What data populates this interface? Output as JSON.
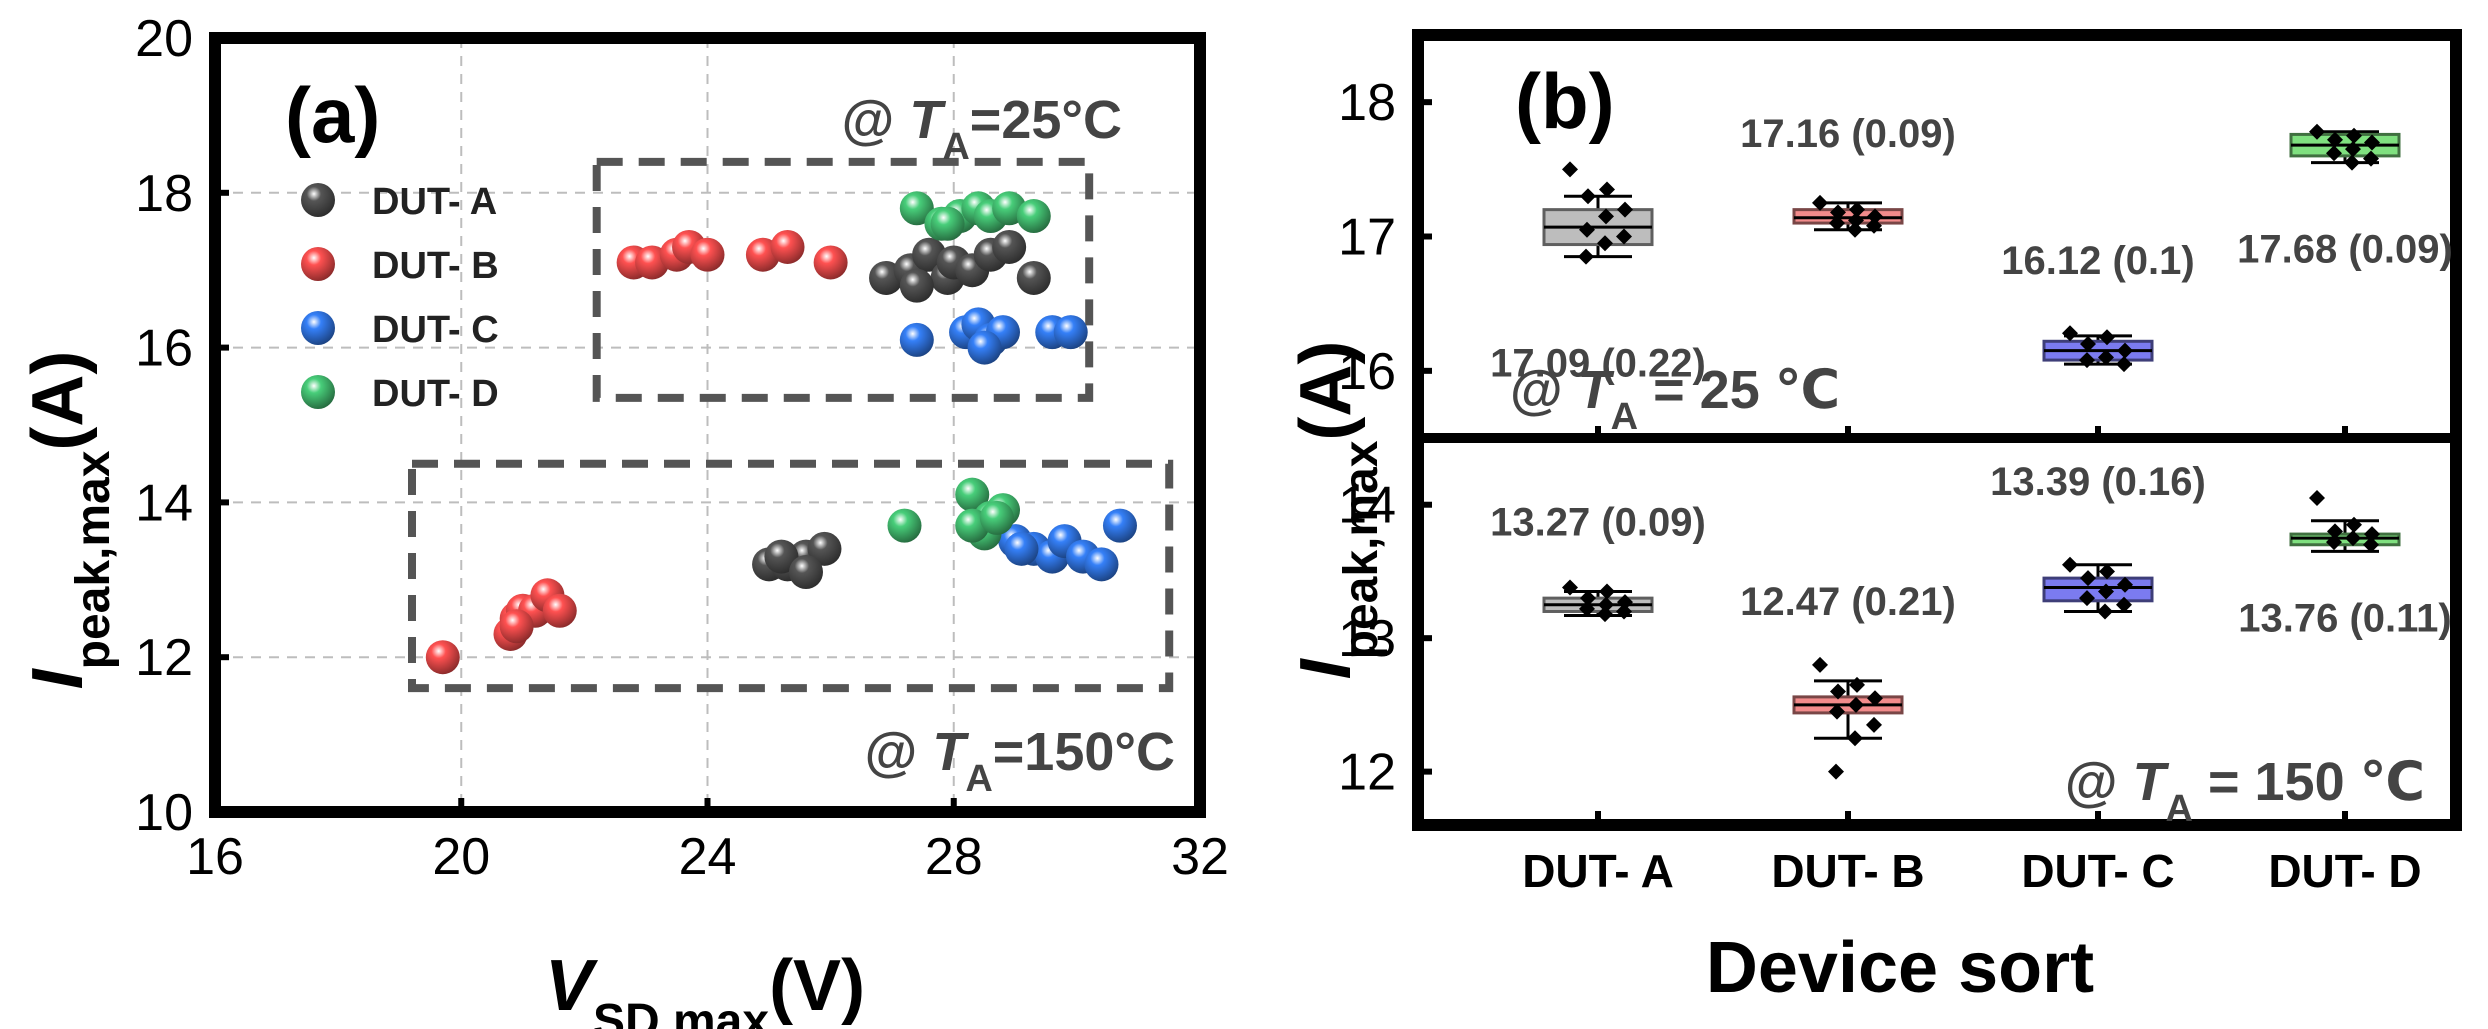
{
  "chart_data": [
    {
      "type": "scatter",
      "panel_label": "(a)",
      "xlabel": {
        "base": "V",
        "sub": "SD,max",
        "tail": "(V)"
      },
      "ylabel": {
        "base": "I",
        "sub": "peak,max",
        "tail": "(A)"
      },
      "xlim": [
        16,
        32
      ],
      "ylim": [
        10,
        20
      ],
      "xticks": [
        16,
        20,
        24,
        28,
        32
      ],
      "yticks": [
        10,
        12,
        14,
        16,
        18,
        20
      ],
      "grid": true,
      "legend_position": "top-left",
      "annotations": [
        {
          "text": "@ ",
          "italic": "T",
          "sub": "A",
          "rest": "=25°C"
        },
        {
          "text": "@ ",
          "italic": "T",
          "sub": "A",
          "rest": "=150°C"
        }
      ],
      "series": [
        {
          "name": "DUT- A",
          "color": "#4a4a4a",
          "points": [
            [
              26.9,
              16.9
            ],
            [
              27.3,
              17.0
            ],
            [
              27.6,
              17.2
            ],
            [
              27.9,
              16.9
            ],
            [
              28.0,
              17.1
            ],
            [
              28.3,
              17.0
            ],
            [
              28.6,
              17.2
            ],
            [
              28.9,
              17.3
            ],
            [
              29.3,
              16.9
            ],
            [
              27.4,
              16.8
            ],
            [
              25.0,
              13.2
            ],
            [
              25.3,
              13.2
            ],
            [
              25.6,
              13.3
            ],
            [
              25.9,
              13.4
            ],
            [
              25.2,
              13.3
            ],
            [
              25.6,
              13.1
            ]
          ]
        },
        {
          "name": "DUT- B",
          "color": "#e84646",
          "points": [
            [
              22.8,
              17.1
            ],
            [
              23.1,
              17.1
            ],
            [
              23.5,
              17.2
            ],
            [
              23.7,
              17.3
            ],
            [
              24.0,
              17.2
            ],
            [
              24.9,
              17.2
            ],
            [
              25.3,
              17.3
            ],
            [
              26.0,
              17.1
            ],
            [
              19.7,
              12.0
            ],
            [
              20.8,
              12.3
            ],
            [
              20.9,
              12.5
            ],
            [
              21.0,
              12.6
            ],
            [
              21.2,
              12.6
            ],
            [
              21.4,
              12.8
            ],
            [
              21.6,
              12.6
            ],
            [
              20.9,
              12.4
            ]
          ]
        },
        {
          "name": "DUT- C",
          "color": "#2e6fd8",
          "points": [
            [
              27.4,
              16.1
            ],
            [
              28.2,
              16.2
            ],
            [
              28.4,
              16.3
            ],
            [
              28.6,
              16.1
            ],
            [
              28.8,
              16.2
            ],
            [
              29.6,
              16.2
            ],
            [
              29.9,
              16.2
            ],
            [
              28.5,
              16.0
            ],
            [
              29.0,
              13.5
            ],
            [
              29.3,
              13.4
            ],
            [
              29.6,
              13.3
            ],
            [
              29.8,
              13.5
            ],
            [
              30.1,
              13.3
            ],
            [
              30.4,
              13.2
            ],
            [
              30.7,
              13.7
            ],
            [
              29.1,
              13.4
            ]
          ]
        },
        {
          "name": "DUT- D",
          "color": "#3fb36a",
          "points": [
            [
              27.4,
              17.8
            ],
            [
              27.8,
              17.6
            ],
            [
              28.1,
              17.7
            ],
            [
              28.4,
              17.8
            ],
            [
              28.6,
              17.7
            ],
            [
              28.9,
              17.8
            ],
            [
              29.3,
              17.7
            ],
            [
              27.9,
              17.6
            ],
            [
              27.2,
              13.7
            ],
            [
              28.3,
              14.1
            ],
            [
              28.4,
              13.7
            ],
            [
              28.6,
              13.8
            ],
            [
              28.8,
              13.9
            ],
            [
              28.5,
              13.6
            ],
            [
              28.3,
              13.7
            ],
            [
              28.7,
              13.8
            ]
          ]
        }
      ]
    },
    {
      "type": "box",
      "panel_label": "(b)",
      "xlabel": "Device sort",
      "ylabel": {
        "base": "I",
        "sub": "peak,max",
        "tail": "(A)"
      },
      "categories": [
        "DUT- A",
        "DUT- B",
        "DUT- C",
        "DUT- D"
      ],
      "colors": [
        "#bdbdbd",
        "#f28b8b",
        "#7b7bf0",
        "#7fe07f"
      ],
      "subpanels": [
        {
          "condition": {
            "text": "@ ",
            "italic": "T",
            "sub": "A",
            "rest": " = 25 ℃"
          },
          "ylim": [
            15.5,
            18.5
          ],
          "yticks": [
            16,
            17,
            18
          ],
          "boxes": [
            {
              "category": "DUT- A",
              "mean": 17.07,
              "q1": 16.94,
              "q3": 17.2,
              "whisker_low": 16.85,
              "whisker_high": 17.3,
              "label": "17.09 (0.22)",
              "points": [
                17.5,
                17.35,
                17.3,
                17.2,
                17.15,
                17.05,
                17.0,
                16.95,
                16.85
              ]
            },
            {
              "category": "DUT- B",
              "mean": 17.14,
              "q1": 17.1,
              "q3": 17.2,
              "whisker_low": 17.05,
              "whisker_high": 17.25,
              "label": "17.16 (0.09)",
              "points": [
                17.25,
                17.2,
                17.18,
                17.15,
                17.12,
                17.1,
                17.08,
                17.05
              ]
            },
            {
              "category": "DUT- C",
              "mean": 16.15,
              "q1": 16.08,
              "q3": 16.22,
              "whisker_low": 16.05,
              "whisker_high": 16.26,
              "label": "16.12 (0.1)",
              "points": [
                16.28,
                16.25,
                16.2,
                16.15,
                16.1,
                16.08,
                16.05
              ]
            },
            {
              "category": "DUT- D",
              "mean": 17.68,
              "q1": 17.6,
              "q3": 17.76,
              "whisker_low": 17.55,
              "whisker_high": 17.78,
              "label": "17.68 (0.09)",
              "points": [
                17.78,
                17.75,
                17.72,
                17.7,
                17.65,
                17.62,
                17.58,
                17.55
              ]
            }
          ]
        },
        {
          "condition": {
            "text": "@ ",
            "italic": "T",
            "sub": "A",
            "rest": " = 150 ℃"
          },
          "ylim": [
            11.6,
            14.5
          ],
          "yticks": [
            12,
            13,
            14
          ],
          "boxes": [
            {
              "category": "DUT- A",
              "mean": 13.25,
              "q1": 13.2,
              "q3": 13.3,
              "whisker_low": 13.17,
              "whisker_high": 13.35,
              "label": "13.27 (0.09)",
              "points": [
                13.38,
                13.35,
                13.3,
                13.27,
                13.25,
                13.22,
                13.2,
                13.18
              ]
            },
            {
              "category": "DUT- B",
              "mean": 12.5,
              "q1": 12.44,
              "q3": 12.56,
              "whisker_low": 12.25,
              "whisker_high": 12.68,
              "label": "12.47 (0.21)",
              "points": [
                12.8,
                12.65,
                12.6,
                12.55,
                12.5,
                12.45,
                12.35,
                12.25,
                12.0
              ]
            },
            {
              "category": "DUT- C",
              "mean": 13.38,
              "q1": 13.28,
              "q3": 13.45,
              "whisker_low": 13.2,
              "whisker_high": 13.55,
              "label": "13.39 (0.16)",
              "points": [
                13.55,
                13.5,
                13.45,
                13.4,
                13.35,
                13.3,
                13.25,
                13.2
              ]
            },
            {
              "category": "DUT- D",
              "mean": 13.75,
              "q1": 13.7,
              "q3": 13.78,
              "whisker_low": 13.65,
              "whisker_high": 13.88,
              "label": "13.76 (0.11)",
              "points": [
                14.05,
                13.85,
                13.8,
                13.78,
                13.75,
                13.72,
                13.7
              ]
            }
          ]
        }
      ]
    }
  ]
}
